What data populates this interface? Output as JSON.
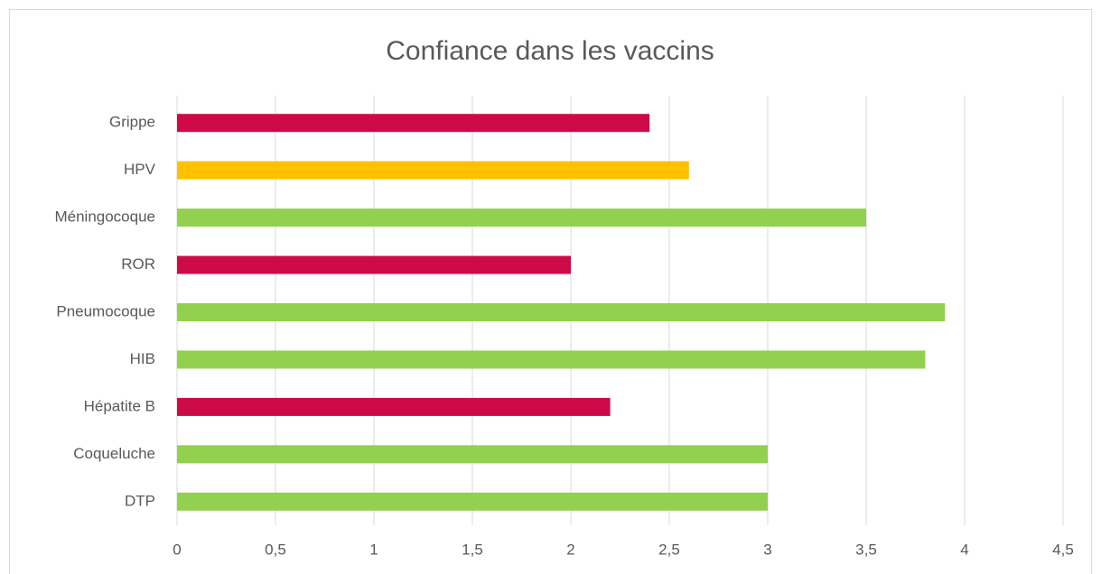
{
  "chart_data": {
    "type": "hbar",
    "title": "Confiance dans les vaccins",
    "categories": [
      "Grippe",
      "HPV",
      "Méningocoque",
      "ROR",
      "Pneumocoque",
      "HIB",
      "Hépatite B",
      "Coqueluche",
      "DTP"
    ],
    "values": [
      2.4,
      2.6,
      3.5,
      2.0,
      3.9,
      3.8,
      2.2,
      3.0,
      3.0
    ],
    "colors": [
      "#cc0a47",
      "#ffc000",
      "#92d050",
      "#cc0a47",
      "#92d050",
      "#92d050",
      "#cc0a47",
      "#92d050",
      "#92d050"
    ],
    "xlim": [
      0,
      4.5
    ],
    "xticks": [
      0,
      {
        "value": 0.5,
        "label": "0,5"
      },
      1,
      {
        "value": 1.5,
        "label": "1,5"
      },
      2,
      {
        "value": 2.5,
        "label": "2,5"
      },
      3,
      {
        "value": 3.5,
        "label": "3,5"
      },
      4,
      {
        "value": 4.5,
        "label": "4,5"
      }
    ],
    "grid": true
  }
}
